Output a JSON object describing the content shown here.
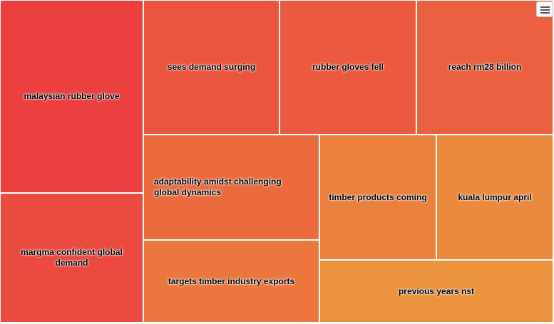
{
  "chart_data": {
    "type": "treemap",
    "items": [
      {
        "label": "malaysian rubber glove",
        "value": 95,
        "color": "#eb3f40"
      },
      {
        "label": "margma confident global demand",
        "value": 64,
        "color": "#eb4a40"
      },
      {
        "label": "sees demand surging",
        "value": 54,
        "color": "#eb5540"
      },
      {
        "label": "rubber gloves fell",
        "value": 54,
        "color": "#eb5a40"
      },
      {
        "label": "reach rm28 billion",
        "value": 54,
        "color": "#eb6040"
      },
      {
        "label": "adaptability amidst challenging global dynamics",
        "value": 42,
        "color": "#eb6b3e"
      },
      {
        "label": "targets timber industry exports",
        "value": 33,
        "color": "#eb763e"
      },
      {
        "label": "timber products coming",
        "value": 33,
        "color": "#eb803e"
      },
      {
        "label": "kuala lumpur april",
        "value": 33,
        "color": "#eb8a3e"
      },
      {
        "label": "previous years nst",
        "value": 26,
        "color": "#eb923c"
      }
    ]
  }
}
